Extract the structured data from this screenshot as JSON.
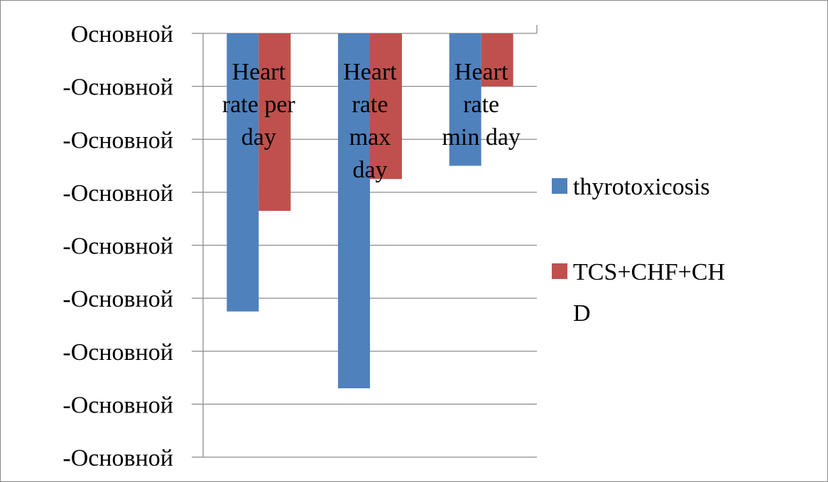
{
  "chart_data": {
    "type": "bar",
    "title": "",
    "xlabel": "",
    "ylabel": "",
    "categories": [
      "Heart rate per day",
      "Heart rate max day",
      "Heart rate min day"
    ],
    "category_lines": [
      [
        "Heart",
        "rate per",
        "day"
      ],
      [
        "Heart",
        "rate",
        "max",
        "day"
      ],
      [
        "Heart",
        "rate",
        "min day"
      ]
    ],
    "series": [
      {
        "name": "thyrotoxicosis",
        "values": [
          -5.25,
          -6.7,
          -2.5
        ],
        "color": "#4f81bd"
      },
      {
        "name": "TCS+CHF+CHD",
        "values": [
          -3.35,
          -2.75,
          -1.0
        ],
        "color": "#c0504d"
      }
    ],
    "legend_lines": [
      [
        "thyrotoxicosis"
      ],
      [
        "TCS+CHF+CH",
        "D"
      ]
    ],
    "ylim": [
      -8,
      0
    ],
    "y_ticks": [
      0,
      -1,
      -2,
      -3,
      -4,
      -5,
      -6,
      -7,
      -8
    ],
    "y_tick_labels": [
      "Основной",
      "-Основной",
      "-Основной",
      "-Основной",
      "-Основной",
      "-Основной",
      "-Основной",
      "-Основной",
      "-Основной"
    ],
    "grid": true,
    "legend_position": "right"
  }
}
